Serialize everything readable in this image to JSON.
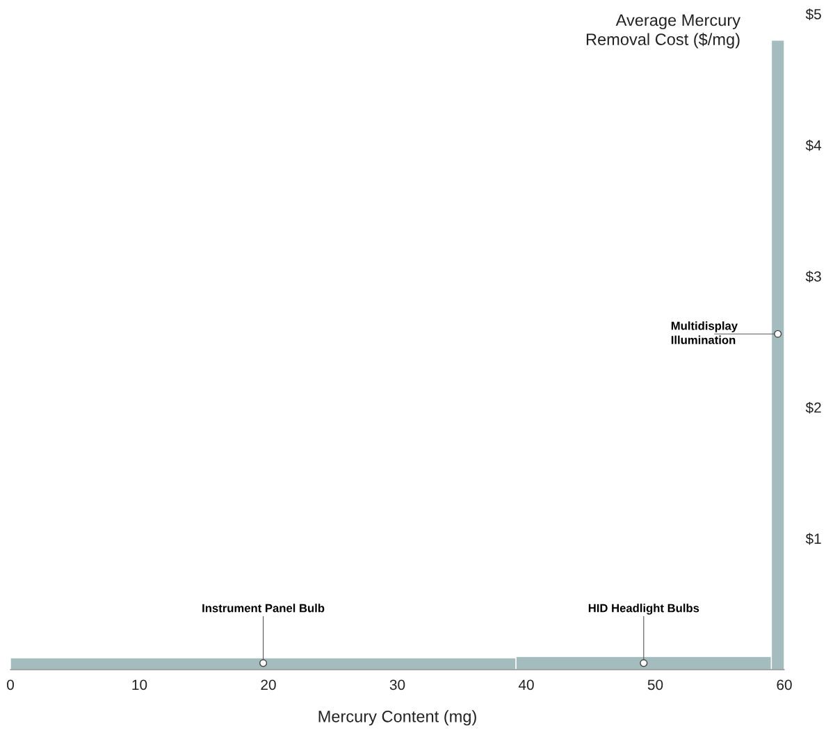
{
  "chart_data": {
    "type": "histogram",
    "xlabel": "Mercury Content (mg)",
    "ylabel": "Average Mercury Removal Cost ($/mg)",
    "bins": [
      0,
      39.2,
      59,
      60
    ],
    "values": [
      0.09,
      0.1,
      4.8
    ],
    "color": "#a5bcbf",
    "xlim": [
      0,
      60
    ],
    "xticks": [
      0,
      10,
      20,
      30,
      40,
      50,
      60
    ],
    "ylim": [
      0,
      5
    ],
    "yticks": [
      {
        "value": 1,
        "label": "$1"
      },
      {
        "value": 2,
        "label": "$2"
      },
      {
        "value": 3,
        "label": "$3"
      },
      {
        "value": 4,
        "label": "$4"
      },
      {
        "value": 5,
        "label": "$5"
      }
    ],
    "grid": false,
    "annotations": [
      {
        "text": "Instrument Panel Bulb",
        "x": 19.6,
        "y": 0.05
      },
      {
        "text": "HID Headlight Bulbs",
        "x": 49.1,
        "y": 0.05
      },
      {
        "text": "Multidisplay\nIllumination",
        "x": 59.5,
        "y": 2.56
      }
    ]
  }
}
